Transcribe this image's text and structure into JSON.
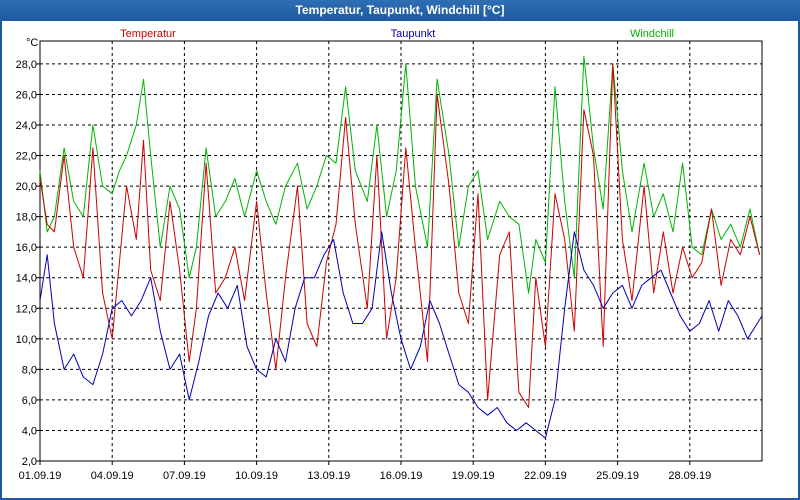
{
  "window": {
    "title": "Temperatur, Taupunkt, Windchill [°C]"
  },
  "colors": {
    "background": "#ffffff",
    "titlebar": "#1d5aa0",
    "temperatur": "#cc0000",
    "taupunkt": "#0000b4",
    "windchill": "#00b400",
    "grid": "#000000"
  },
  "chart_data": {
    "type": "line",
    "title": "Temperatur, Taupunkt, Windchill [°C]",
    "ylabel": "°C",
    "xlabel": "",
    "ylim": [
      2.0,
      29.5
    ],
    "xlim": [
      1,
      31
    ],
    "grid": true,
    "legend": [
      "Temperatur",
      "Taupunkt",
      "Windchill"
    ],
    "yticks": [
      2.0,
      4.0,
      6.0,
      8.0,
      10.0,
      12.0,
      14.0,
      16.0,
      18.0,
      20.0,
      22.0,
      24.0,
      26.0,
      28.0
    ],
    "ytick_labels": [
      "2,0",
      "4,0",
      "6,0",
      "8,0",
      "10,0",
      "12,0",
      "14,0",
      "16,0",
      "18,0",
      "20,0",
      "22,0",
      "24,0",
      "26,0",
      "28,0"
    ],
    "xticks": [
      1,
      4,
      7,
      10,
      13,
      16,
      19,
      22,
      25,
      28
    ],
    "xtick_labels": [
      "01.09.19",
      "04.09.19",
      "07.09.19",
      "10.09.19",
      "13.09.19",
      "16.09.19",
      "19.09.19",
      "22.09.19",
      "25.09.19",
      "28.09.19"
    ],
    "series": [
      {
        "name": "Temperatur",
        "x": [
          1.0,
          1.3,
          1.6,
          2.0,
          2.4,
          2.8,
          3.2,
          3.6,
          4.0,
          4.3,
          4.6,
          5.0,
          5.3,
          5.6,
          6.0,
          6.4,
          6.8,
          7.2,
          7.5,
          7.9,
          8.3,
          8.7,
          9.1,
          9.5,
          10.0,
          10.4,
          10.8,
          11.2,
          11.7,
          12.1,
          12.5,
          12.9,
          13.3,
          13.7,
          14.1,
          14.6,
          15.0,
          15.4,
          15.8,
          16.2,
          16.6,
          17.1,
          17.5,
          18.0,
          18.4,
          18.8,
          19.2,
          19.6,
          20.1,
          20.5,
          20.9,
          21.3,
          21.6,
          22.0,
          22.4,
          22.8,
          23.2,
          23.6,
          24.0,
          24.4,
          24.8,
          25.2,
          25.6,
          26.1,
          26.5,
          26.9,
          27.3,
          27.7,
          28.1,
          28.5,
          28.9,
          29.3,
          29.7,
          30.1,
          30.5,
          30.9
        ],
        "y": [
          20.5,
          17.5,
          17.0,
          22.0,
          16.0,
          14.0,
          22.5,
          13.0,
          10.0,
          15.0,
          20.0,
          16.5,
          23.0,
          14.5,
          12.5,
          19.0,
          14.5,
          8.5,
          12.0,
          21.5,
          13.0,
          14.0,
          16.0,
          12.5,
          19.0,
          13.0,
          8.0,
          14.0,
          20.0,
          11.0,
          9.5,
          15.0,
          17.5,
          24.5,
          17.5,
          12.0,
          22.0,
          10.0,
          14.0,
          22.5,
          16.0,
          8.5,
          26.0,
          20.0,
          13.0,
          11.0,
          19.5,
          6.0,
          15.5,
          17.0,
          6.5,
          5.5,
          14.0,
          9.5,
          19.5,
          16.5,
          10.5,
          25.0,
          22.0,
          9.5,
          28.0,
          16.5,
          12.5,
          20.0,
          13.0,
          17.0,
          13.0,
          16.0,
          14.0,
          15.0,
          18.5,
          13.5,
          16.5,
          15.5,
          18.0,
          15.5
        ]
      },
      {
        "name": "Taupunkt",
        "x": [
          1.0,
          1.3,
          1.6,
          2.0,
          2.4,
          2.8,
          3.2,
          3.6,
          4.0,
          4.4,
          4.8,
          5.2,
          5.6,
          6.0,
          6.4,
          6.8,
          7.2,
          7.6,
          8.0,
          8.4,
          8.8,
          9.2,
          9.6,
          10.0,
          10.4,
          10.8,
          11.2,
          11.6,
          12.0,
          12.4,
          12.8,
          13.2,
          13.6,
          14.0,
          14.4,
          14.8,
          15.2,
          15.6,
          16.0,
          16.4,
          16.8,
          17.2,
          17.6,
          18.0,
          18.4,
          18.8,
          19.2,
          19.6,
          20.0,
          20.4,
          20.8,
          21.2,
          21.6,
          22.0,
          22.4,
          22.8,
          23.2,
          23.6,
          24.0,
          24.4,
          24.8,
          25.2,
          25.6,
          26.0,
          26.4,
          26.8,
          27.2,
          27.6,
          28.0,
          28.4,
          28.8,
          29.2,
          29.6,
          30.0,
          30.4,
          30.8,
          31.0
        ],
        "y": [
          12.5,
          15.5,
          11.0,
          8.0,
          9.0,
          7.5,
          7.0,
          9.0,
          12.0,
          12.5,
          11.5,
          12.5,
          14.0,
          10.5,
          8.0,
          9.0,
          6.0,
          8.5,
          11.5,
          13.0,
          12.0,
          13.5,
          9.5,
          8.0,
          7.5,
          10.0,
          8.5,
          12.0,
          14.0,
          14.0,
          15.5,
          16.5,
          13.0,
          11.0,
          11.0,
          12.0,
          17.0,
          13.0,
          10.0,
          8.0,
          9.5,
          12.5,
          11.0,
          9.0,
          7.0,
          6.5,
          5.5,
          5.0,
          5.5,
          4.5,
          4.0,
          4.5,
          4.0,
          3.5,
          6.0,
          12.0,
          17.0,
          14.5,
          13.5,
          12.0,
          13.0,
          13.5,
          12.0,
          13.5,
          14.0,
          14.5,
          13.0,
          11.5,
          10.5,
          11.0,
          12.5,
          10.5,
          12.5,
          11.5,
          10.0,
          11.0,
          11.5
        ]
      },
      {
        "name": "Windchill",
        "x": [
          1.0,
          1.3,
          1.6,
          2.0,
          2.4,
          2.8,
          3.2,
          3.6,
          4.0,
          4.3,
          4.6,
          5.0,
          5.3,
          5.6,
          6.0,
          6.4,
          6.8,
          7.2,
          7.5,
          7.9,
          8.3,
          8.7,
          9.1,
          9.5,
          10.0,
          10.4,
          10.8,
          11.2,
          11.7,
          12.1,
          12.5,
          12.9,
          13.3,
          13.7,
          14.1,
          14.6,
          15.0,
          15.4,
          15.8,
          16.2,
          16.6,
          17.1,
          17.5,
          18.0,
          18.4,
          18.8,
          19.2,
          19.6,
          20.1,
          20.5,
          20.9,
          21.3,
          21.6,
          22.0,
          22.4,
          22.8,
          23.2,
          23.6,
          24.0,
          24.4,
          24.8,
          25.2,
          25.6,
          26.1,
          26.5,
          26.9,
          27.3,
          27.7,
          28.1,
          28.5,
          28.9,
          29.3,
          29.7,
          30.1,
          30.5,
          30.9
        ],
        "y": [
          21.0,
          17.0,
          18.0,
          22.5,
          19.0,
          18.0,
          24.0,
          20.0,
          19.5,
          21.0,
          22.0,
          24.0,
          27.0,
          22.0,
          16.0,
          20.0,
          18.5,
          14.0,
          16.0,
          22.5,
          18.0,
          19.0,
          20.5,
          18.0,
          21.0,
          19.0,
          17.5,
          20.0,
          21.5,
          18.5,
          20.0,
          22.0,
          21.5,
          26.5,
          21.0,
          19.0,
          24.0,
          18.0,
          21.0,
          28.0,
          20.0,
          16.0,
          27.0,
          22.0,
          16.0,
          20.0,
          21.0,
          16.5,
          19.0,
          18.0,
          17.5,
          13.0,
          16.5,
          15.0,
          26.5,
          19.0,
          14.0,
          28.5,
          22.5,
          18.5,
          28.0,
          21.0,
          17.0,
          21.5,
          18.0,
          19.5,
          17.0,
          21.5,
          16.0,
          15.5,
          18.5,
          16.5,
          17.5,
          16.0,
          18.5,
          15.5
        ]
      }
    ]
  }
}
